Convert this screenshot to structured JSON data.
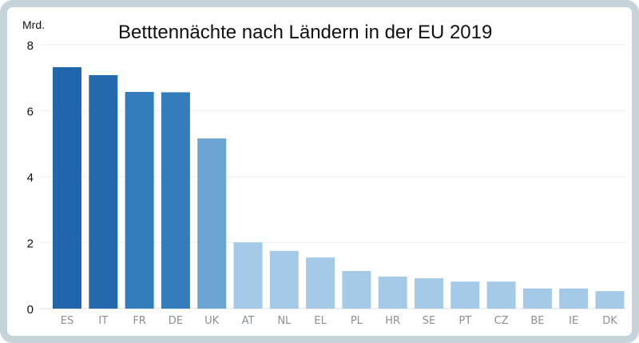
{
  "chart_data": {
    "type": "bar",
    "title": "Betttennächte nach Ländern in der EU 2019",
    "ylabel": "Mrd.",
    "xlabel": "",
    "categories": [
      "ES",
      "IT",
      "FR",
      "DE",
      "UK",
      "AT",
      "NL",
      "EL",
      "PL",
      "HR",
      "SE",
      "PT",
      "CZ",
      "BE",
      "IE",
      "DK"
    ],
    "values": [
      7.32,
      7.08,
      6.57,
      6.56,
      5.16,
      2.01,
      1.75,
      1.55,
      1.14,
      0.97,
      0.92,
      0.82,
      0.82,
      0.61,
      0.61,
      0.53
    ],
    "colors": [
      "#2166ac",
      "#2369ae",
      "#337dbd",
      "#337dbd",
      "#6aa5d4",
      "#a5cae8",
      "#a5cae8",
      "#a5cae8",
      "#a5cae8",
      "#a5cae8",
      "#a5cae8",
      "#a5cae8",
      "#a5cae8",
      "#a5cae8",
      "#a5cae8",
      "#a5cae8"
    ],
    "ylim": [
      0,
      8
    ],
    "yticks": [
      0,
      2,
      4,
      6,
      8
    ],
    "grid": true,
    "legend": "none"
  }
}
